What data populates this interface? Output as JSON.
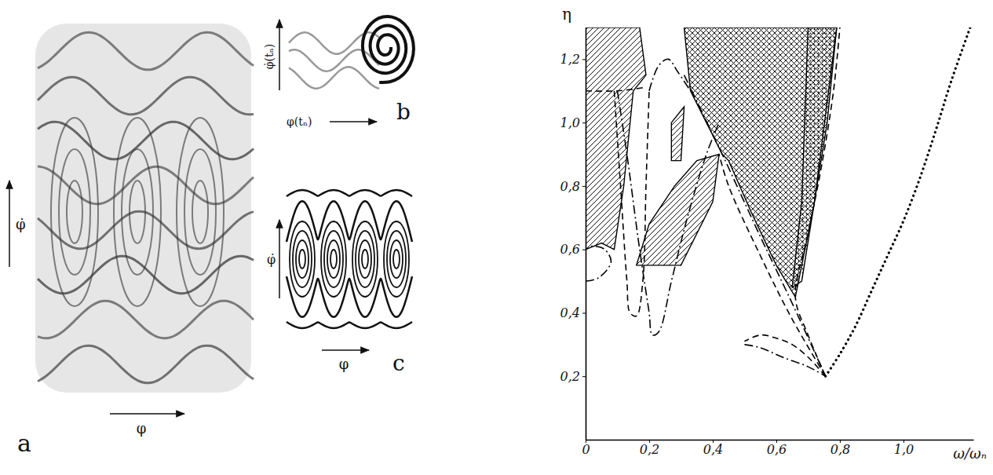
{
  "panels": [
    {
      "letter": "a",
      "x_label": "φ",
      "y_label": "φ̇"
    },
    {
      "letter": "b",
      "x_label": "φ(tₙ)",
      "y_label": "φ̇(tₙ)"
    },
    {
      "letter": "c",
      "x_label": "φ",
      "y_label": "φ̇"
    }
  ],
  "chart_data": {
    "type": "line",
    "x_label": "ω/ωₙ",
    "y_label": "η",
    "xlim": [
      0,
      1.22
    ],
    "ylim": [
      0,
      1.3
    ],
    "xticks": [
      0,
      {
        "value": 0.2,
        "label": "0,2"
      },
      {
        "value": 0.4,
        "label": "0,4"
      },
      {
        "value": 0.6,
        "label": "0,6"
      },
      {
        "value": 0.8,
        "label": "0,8"
      },
      {
        "value": 1.0,
        "label": "1,0"
      }
    ],
    "yticks": [
      {
        "value": 0.2,
        "label": "0,2"
      },
      {
        "value": 0.4,
        "label": "0,4"
      },
      {
        "value": 0.6,
        "label": "0,6"
      },
      {
        "value": 0.8,
        "label": "0,8"
      },
      {
        "value": 1.0,
        "label": "1,0"
      },
      {
        "value": 1.2,
        "label": "1,2"
      }
    ],
    "grid": false,
    "series": [
      {
        "type": "area",
        "line_style": "hatched",
        "color": "#000000",
        "x": [
          0,
          0,
          0.17,
          0.19,
          0.15,
          0.12,
          0.09,
          0.05
        ],
        "values": [
          0.6,
          1.3,
          1.3,
          1.15,
          1.1,
          0.8,
          0.6,
          0.62
        ]
      },
      {
        "type": "area",
        "line_style": "hatched",
        "color": "#000000",
        "x": [
          0.16,
          0.3,
          0.4,
          0.42,
          0.35,
          0.28,
          0.2
        ],
        "values": [
          0.55,
          0.55,
          0.75,
          0.9,
          0.88,
          0.8,
          0.68
        ]
      },
      {
        "type": "area",
        "line_style": "hatched",
        "color": "#000000",
        "x": [
          0.27,
          0.3,
          0.31,
          0.27
        ],
        "values": [
          0.88,
          0.88,
          1.05,
          1.0
        ]
      },
      {
        "type": "area",
        "line_style": "cross-hatched",
        "color": "#000000",
        "x": [
          0.31,
          0.79,
          0.76,
          0.72,
          0.68,
          0.66,
          0.6,
          0.52,
          0.45,
          0.43,
          0.38,
          0.33
        ],
        "values": [
          1.3,
          1.3,
          1.0,
          0.75,
          0.55,
          0.45,
          0.55,
          0.72,
          0.88,
          0.9,
          1.0,
          1.1
        ]
      },
      {
        "type": "area",
        "line_style": "dotted",
        "color": "#000000",
        "x": [
          0.7,
          0.79,
          0.72,
          0.68,
          0.65,
          0.68
        ],
        "values": [
          1.3,
          1.3,
          0.75,
          0.5,
          0.48,
          0.75
        ]
      },
      {
        "type": "line",
        "line_style": "dotted",
        "color": "#000000",
        "x": [
          0.755,
          0.8,
          0.85,
          0.9,
          0.95,
          1.0,
          1.05,
          1.1,
          1.15,
          1.21
        ],
        "values": [
          0.2,
          0.27,
          0.36,
          0.47,
          0.58,
          0.69,
          0.82,
          0.97,
          1.13,
          1.3
        ]
      },
      {
        "type": "line",
        "line_style": "dash-dot",
        "color": "#000000",
        "x": [
          0.31,
          0.43,
          0.55,
          0.65,
          0.755
        ],
        "values": [
          1.15,
          0.9,
          0.64,
          0.43,
          0.2
        ]
      },
      {
        "type": "line",
        "line_style": "dashed",
        "color": "#000000",
        "x": [
          0.755,
          0.7,
          0.65,
          0.6,
          0.55,
          0.5
        ],
        "values": [
          0.2,
          0.26,
          0.3,
          0.32,
          0.33,
          0.31
        ]
      },
      {
        "type": "line",
        "line_style": "dash-dot",
        "color": "#000000",
        "x": [
          0.5,
          0.55,
          0.62,
          0.7,
          0.755
        ],
        "values": [
          0.3,
          0.29,
          0.26,
          0.23,
          0.2
        ]
      },
      {
        "type": "line",
        "line_style": "dashed",
        "color": "#000000",
        "x": [
          0.755,
          0.7,
          0.66,
          0.7,
          0.74,
          0.78,
          0.8
        ],
        "values": [
          0.2,
          0.33,
          0.45,
          0.65,
          0.85,
          1.1,
          1.3
        ]
      },
      {
        "type": "line",
        "line_style": "dash-dot",
        "color": "#000000",
        "x": [
          0.1,
          0.13,
          0.17,
          0.2,
          0.21,
          0.23,
          0.27,
          0.32,
          0.38,
          0.42
        ],
        "values": [
          1.1,
          0.9,
          0.6,
          0.4,
          0.33,
          0.34,
          0.5,
          0.7,
          0.9,
          1.0
        ]
      },
      {
        "type": "line",
        "line_style": "dashed",
        "color": "#000000",
        "x": [
          0.09,
          0.11,
          0.13,
          0.14,
          0.16,
          0.18,
          0.19,
          0.2
        ],
        "values": [
          1.1,
          0.8,
          0.5,
          0.4,
          0.39,
          0.5,
          0.8,
          1.1
        ]
      },
      {
        "type": "line",
        "line_style": "dash-dot",
        "color": "#000000",
        "x": [
          0.2,
          0.23,
          0.26,
          0.29,
          0.33
        ],
        "values": [
          1.1,
          1.18,
          1.2,
          1.16,
          1.1
        ]
      },
      {
        "type": "line",
        "line_style": "dash-dot",
        "color": "#000000",
        "x": [
          0,
          0.04,
          0.08,
          0.06,
          0.02,
          0
        ],
        "values": [
          0.5,
          0.51,
          0.56,
          0.6,
          0.61,
          0.6
        ]
      },
      {
        "type": "line",
        "line_style": "dashed",
        "color": "#000000",
        "x": [
          0,
          0.1,
          0.18
        ],
        "values": [
          1.1,
          1.1,
          1.11
        ]
      },
      {
        "type": "line",
        "line_style": "dashed",
        "color": "#000000",
        "x": [
          0.755,
          0.65,
          0.55,
          0.45,
          0.42
        ],
        "values": [
          0.2,
          0.38,
          0.58,
          0.8,
          0.9
        ]
      }
    ]
  }
}
